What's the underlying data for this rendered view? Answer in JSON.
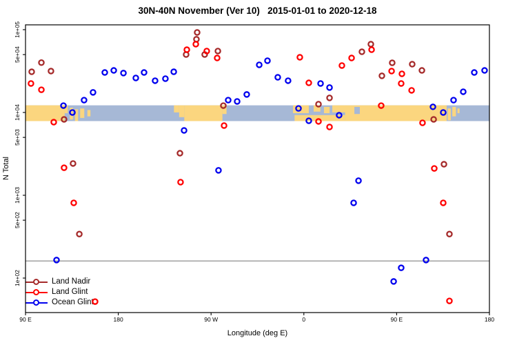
{
  "title": "30N-40N November (Ver 10)   2015-01-01 to 2020-12-18",
  "axes": {
    "x_label": "Longitude (deg E)",
    "y_label": "N Total",
    "x_ticks": [
      {
        "deg": 0,
        "label": "90 E"
      },
      {
        "deg": 90,
        "label": "180"
      },
      {
        "deg": 180,
        "label": "90 W"
      },
      {
        "deg": 270,
        "label": "0"
      },
      {
        "deg": 360,
        "label": "90 E"
      },
      {
        "deg": 450,
        "label": "180"
      }
    ],
    "y_ticks": [
      {
        "value": 100000,
        "label": "1e+05"
      },
      {
        "value": 50000,
        "label": "5e+04"
      },
      {
        "value": 10000,
        "label": "1e+04"
      },
      {
        "value": 5000,
        "label": "5e+03"
      },
      {
        "value": 1000,
        "label": "1e+03"
      },
      {
        "value": 500,
        "label": "5e+02"
      },
      {
        "value": 100,
        "label": "1e+02"
      }
    ],
    "y_scale": "log10",
    "x_axis_span_deg": 450
  },
  "legend": [
    {
      "label": "Land Nadir",
      "color": "#A52A2A"
    },
    {
      "label": "Land Glint",
      "color": "#FF0000"
    },
    {
      "label": "Ocean Glint",
      "color": "#0000EE"
    }
  ],
  "reference_line": {
    "n": 161,
    "color": "#808080"
  },
  "chart_data": {
    "type": "scatter",
    "title": "30N-40N November (Ver 10)   2015-01-01 to 2020-12-18",
    "xlabel": "Longitude (deg E)",
    "ylabel": "N Total",
    "x_units": "degrees eastward along axis starting at 90E (0=90E, 90=180, 180=90W, 270=0, 360=90E, 450=180)",
    "ylim": [
      38,
      115000
    ],
    "points_format": [
      "axis_deg",
      "n_total"
    ],
    "series": [
      {
        "name": "Land Nadir",
        "color": "#A52A2A",
        "points": [
          [
            6,
            31000
          ],
          [
            15.4,
            40000
          ],
          [
            24.7,
            31600
          ],
          [
            37.4,
            8250
          ],
          [
            46.1,
            2420
          ],
          [
            52.2,
            340
          ],
          [
            149.8,
            3220
          ],
          [
            155.8,
            50100
          ],
          [
            165.8,
            76600
          ],
          [
            166.5,
            92600
          ],
          [
            173.8,
            50100
          ],
          [
            186.6,
            55200
          ],
          [
            191.9,
            12100
          ],
          [
            284.2,
            12600
          ],
          [
            294.9,
            15000
          ],
          [
            326.3,
            54100
          ],
          [
            335,
            66800
          ],
          [
            345.7,
            27700
          ],
          [
            355.7,
            39800
          ],
          [
            375.1,
            38300
          ],
          [
            384.5,
            32200
          ],
          [
            395.9,
            8250
          ],
          [
            405.9,
            2370
          ],
          [
            411.2,
            340
          ]
        ]
      },
      {
        "name": "Land Glint",
        "color": "#FF0000",
        "points": [
          [
            5.3,
            22400
          ],
          [
            15.4,
            18800
          ],
          [
            27.4,
            7640
          ],
          [
            37.4,
            2150
          ],
          [
            46.8,
            810
          ],
          [
            67.5,
            52
          ],
          [
            150.4,
            1440
          ],
          [
            156.5,
            57300
          ],
          [
            165.2,
            66800
          ],
          [
            175.8,
            55200
          ],
          [
            185.9,
            45500
          ],
          [
            192.6,
            6950
          ],
          [
            266.1,
            46400
          ],
          [
            274.8,
            22800
          ],
          [
            284.2,
            7800
          ],
          [
            294.9,
            6680
          ],
          [
            306.9,
            36900
          ],
          [
            316.3,
            45500
          ],
          [
            335.7,
            57300
          ],
          [
            345,
            12100
          ],
          [
            355.1,
            31600
          ],
          [
            364.4,
            22400
          ],
          [
            365.1,
            29300
          ],
          [
            374.5,
            18500
          ],
          [
            385.1,
            7500
          ],
          [
            396.5,
            2110
          ],
          [
            405.2,
            810
          ],
          [
            411.2,
            53
          ]
        ]
      },
      {
        "name": "Ocean Glint",
        "color": "#0000EE",
        "points": [
          [
            30.1,
            165
          ],
          [
            36.8,
            12100
          ],
          [
            45.5,
            10000
          ],
          [
            56.8,
            14100
          ],
          [
            65.5,
            17500
          ],
          [
            76.9,
            30400
          ],
          [
            85.6,
            32200
          ],
          [
            95,
            29900
          ],
          [
            107,
            26100
          ],
          [
            115,
            30400
          ],
          [
            125.7,
            24200
          ],
          [
            135.7,
            25600
          ],
          [
            143.8,
            31000
          ],
          [
            153.8,
            6070
          ],
          [
            187.2,
            2000
          ],
          [
            196.6,
            14100
          ],
          [
            205.3,
            13600
          ],
          [
            214.6,
            16500
          ],
          [
            226.7,
            37600
          ],
          [
            234.7,
            42200
          ],
          [
            244.7,
            26600
          ],
          [
            254.7,
            24200
          ],
          [
            264.8,
            11200
          ],
          [
            274.8,
            7940
          ],
          [
            286.2,
            22400
          ],
          [
            294.9,
            20000
          ],
          [
            304.2,
            9270
          ],
          [
            318.3,
            810
          ],
          [
            323,
            1500
          ],
          [
            357.1,
            91
          ],
          [
            364.4,
            133
          ],
          [
            388.5,
            165
          ],
          [
            395.2,
            11700
          ],
          [
            405.2,
            10000
          ],
          [
            415.2,
            14100
          ],
          [
            424.6,
            17800
          ],
          [
            435.3,
            30400
          ],
          [
            445.3,
            32200
          ]
        ]
      }
    ],
    "map_band": {
      "description": "30N-40N latitude strip world map drawn across the plot near N=1e+04",
      "n_top": 12200,
      "n_bottom": 7870,
      "ocean_color": "#A6B8D6",
      "land_color": "#FBD67F",
      "land_segments": [
        {
          "d0": 0,
          "d1": 38,
          "f0": 0,
          "f1": 1
        },
        {
          "d0": 38,
          "d1": 41,
          "f0": 0,
          "f1": 0.5
        },
        {
          "d0": 43,
          "d1": 46,
          "f0": 0.15,
          "f1": 0.9
        },
        {
          "d0": 48,
          "d1": 51,
          "f0": 0.25,
          "f1": 1
        },
        {
          "d0": 53,
          "d1": 57,
          "f0": 0.2,
          "f1": 0.8
        },
        {
          "d0": 60,
          "d1": 63,
          "f0": 0.3,
          "f1": 0.7
        },
        {
          "d0": 144,
          "d1": 149,
          "f0": 0,
          "f1": 0.45
        },
        {
          "d0": 149,
          "d1": 154,
          "f0": 0,
          "f1": 0.75
        },
        {
          "d0": 154,
          "d1": 191,
          "f0": 0,
          "f1": 1
        },
        {
          "d0": 191,
          "d1": 195,
          "f0": 0,
          "f1": 0.55
        },
        {
          "d0": 259.5,
          "d1": 274.8,
          "f0": 0,
          "f1": 0.5
        },
        {
          "d0": 261,
          "d1": 310,
          "f0": 0.62,
          "f1": 1
        },
        {
          "d0": 279.5,
          "d1": 286,
          "f0": 0,
          "f1": 0.4
        },
        {
          "d0": 289.5,
          "d1": 295,
          "f0": 0.1,
          "f1": 0.5
        },
        {
          "d0": 297.6,
          "d1": 311,
          "f0": 0,
          "f1": 0.45
        },
        {
          "d0": 310,
          "d1": 408.5,
          "f0": 0,
          "f1": 1
        },
        {
          "d0": 409.5,
          "d1": 412.5,
          "f0": 0.2,
          "f1": 0.95
        },
        {
          "d0": 414,
          "d1": 417.5,
          "f0": 0.1,
          "f1": 0.7
        },
        {
          "d0": 419,
          "d1": 421,
          "f0": 0.2,
          "f1": 0.5
        }
      ],
      "ocean_patches": [
        {
          "d0": 319,
          "d1": 324.3,
          "f0": 0.1,
          "f1": 0.55
        }
      ]
    }
  }
}
